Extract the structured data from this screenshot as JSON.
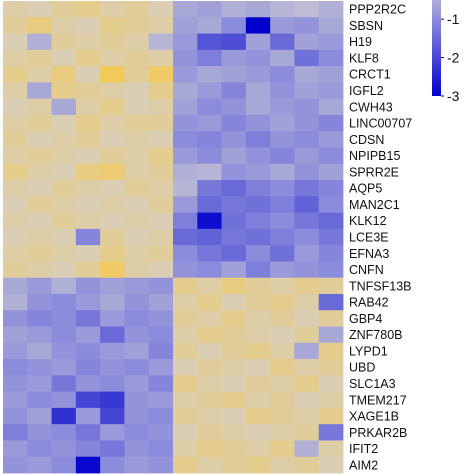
{
  "chart_data": {
    "type": "heatmap",
    "rows": [
      "PPP2R2C",
      "SBSN",
      "H19",
      "KLF8",
      "CRCT1",
      "IGFL2",
      "CWH43",
      "LINC00707",
      "CDSN",
      "NPIPB15",
      "SPRR2E",
      "AQP5",
      "MAN2C1",
      "KLK12",
      "LCE3E",
      "EFNA3",
      "CNFN",
      "TNFSF13B",
      "RAB42",
      "GBP4",
      "ZNF780B",
      "LYPD1",
      "UBD",
      "SLC1A3",
      "TMEM217",
      "XAGE1B",
      "PRKAR2B",
      "IFIT2",
      "AIM2"
    ],
    "n_cols": 14,
    "values": [
      [
        0.3,
        0.2,
        0.4,
        0.5,
        0.3,
        0.4,
        0.2,
        -0.6,
        -0.7,
        -0.5,
        -0.6,
        -0.4,
        -0.3,
        -0.5
      ],
      [
        0.4,
        0.6,
        0.3,
        0.2,
        0.5,
        0.4,
        0.3,
        -0.7,
        -0.6,
        -1.0,
        -3.0,
        -0.8,
        -0.9,
        -0.6
      ],
      [
        0.2,
        -0.5,
        0.4,
        0.3,
        0.4,
        0.3,
        -0.4,
        -0.8,
        -1.8,
        -1.9,
        -0.7,
        -1.5,
        -0.7,
        -0.8
      ],
      [
        0.3,
        0.4,
        0.2,
        0.5,
        0.3,
        0.4,
        0.3,
        -0.9,
        -1.2,
        -0.8,
        -0.9,
        -0.6,
        -1.4,
        -1.0
      ],
      [
        0.5,
        0.3,
        0.6,
        0.2,
        0.9,
        0.4,
        0.8,
        -0.8,
        -0.6,
        -0.7,
        -0.8,
        -1.0,
        -0.6,
        -0.7
      ],
      [
        0.3,
        -0.6,
        0.5,
        0.4,
        0.3,
        0.2,
        0.5,
        -0.6,
        -0.8,
        -1.1,
        -0.6,
        -0.9,
        -0.7,
        -0.8
      ],
      [
        0.2,
        0.3,
        -0.6,
        0.3,
        0.5,
        0.2,
        0.3,
        -0.7,
        -1.0,
        -0.9,
        -0.6,
        -0.8,
        -0.9,
        -0.6
      ],
      [
        0.3,
        0.4,
        0.2,
        0.5,
        0.3,
        0.4,
        0.4,
        -0.9,
        -0.8,
        -1.1,
        -0.9,
        -0.7,
        -0.9,
        -1.1
      ],
      [
        0.4,
        0.2,
        0.3,
        0.4,
        0.2,
        0.3,
        0.2,
        -1.0,
        -1.1,
        -0.9,
        -1.2,
        -0.9,
        -1.0,
        -0.8
      ],
      [
        0.3,
        0.4,
        0.3,
        0.2,
        0.4,
        0.3,
        0.5,
        -0.8,
        -1.0,
        -0.7,
        -0.9,
        -1.1,
        -0.8,
        -1.0
      ],
      [
        0.5,
        0.3,
        0.2,
        0.6,
        0.7,
        0.3,
        0.4,
        -0.5,
        -0.4,
        -0.9,
        -0.8,
        -0.6,
        -0.9,
        -0.7
      ],
      [
        0.3,
        0.2,
        0.4,
        0.3,
        0.2,
        0.4,
        0.3,
        -0.4,
        -1.3,
        -1.5,
        -1.2,
        -1.0,
        -1.3,
        -1.1
      ],
      [
        0.2,
        0.4,
        0.3,
        0.2,
        0.3,
        0.2,
        0.4,
        -0.8,
        -1.5,
        -1.3,
        -1.4,
        -1.2,
        -1.6,
        -1.0
      ],
      [
        0.3,
        0.2,
        0.4,
        0.3,
        0.2,
        0.3,
        0.2,
        -1.2,
        -2.8,
        -1.4,
        -1.2,
        -1.0,
        -1.3,
        -1.5
      ],
      [
        0.2,
        0.3,
        0.2,
        -1.1,
        0.4,
        0.2,
        0.3,
        -1.5,
        -1.6,
        -1.3,
        -1.4,
        -1.2,
        -1.0,
        -1.3
      ],
      [
        0.3,
        0.4,
        0.3,
        0.2,
        0.5,
        0.3,
        0.4,
        -1.0,
        -1.3,
        -1.5,
        -1.0,
        -1.4,
        -0.8,
        -1.1
      ],
      [
        0.4,
        0.3,
        0.2,
        0.4,
        0.8,
        0.3,
        0.2,
        -0.9,
        -1.0,
        -0.7,
        -1.2,
        -0.8,
        -0.9,
        -1.0
      ],
      [
        -0.6,
        -0.8,
        -0.5,
        -0.9,
        -0.7,
        -0.8,
        -0.9,
        0.5,
        0.3,
        0.6,
        0.4,
        0.3,
        0.5,
        0.4
      ],
      [
        -0.5,
        -0.9,
        -1.0,
        -0.8,
        -0.6,
        -0.9,
        -0.7,
        0.3,
        0.5,
        0.2,
        0.4,
        0.5,
        0.3,
        -1.5
      ],
      [
        -0.9,
        -1.1,
        -1.0,
        -1.3,
        -0.8,
        -1.0,
        -0.9,
        0.4,
        0.3,
        0.5,
        0.3,
        0.4,
        0.2,
        0.4
      ],
      [
        -0.7,
        -0.8,
        -1.0,
        -0.8,
        -1.5,
        -0.9,
        -1.0,
        0.3,
        0.5,
        0.4,
        0.3,
        0.2,
        0.4,
        -0.6
      ],
      [
        -0.8,
        -0.6,
        -0.9,
        -1.0,
        -0.8,
        -0.7,
        -1.1,
        0.4,
        0.2,
        0.4,
        0.5,
        0.3,
        -0.6,
        0.5
      ],
      [
        -1.0,
        -0.9,
        -0.8,
        -1.1,
        -0.9,
        -1.0,
        -0.8,
        0.2,
        0.4,
        0.3,
        0.2,
        0.5,
        0.3,
        0.4
      ],
      [
        -0.9,
        -0.8,
        -1.3,
        -0.9,
        -1.0,
        -0.8,
        -1.1,
        0.5,
        0.3,
        0.2,
        0.4,
        0.3,
        0.5,
        0.2
      ],
      [
        -0.8,
        -1.0,
        -0.9,
        -2.0,
        -2.2,
        -0.9,
        -0.8,
        0.3,
        0.4,
        0.5,
        0.3,
        0.4,
        0.2,
        0.3
      ],
      [
        -0.9,
        -0.7,
        -2.3,
        -0.8,
        -2.0,
        -0.9,
        -1.0,
        0.4,
        0.3,
        0.2,
        0.5,
        0.4,
        0.3,
        0.5
      ],
      [
        -1.2,
        -0.9,
        -1.0,
        -1.3,
        -0.8,
        -1.0,
        -0.9,
        0.2,
        0.4,
        0.3,
        0.2,
        0.3,
        0.4,
        -1.3
      ],
      [
        -0.8,
        -1.0,
        -0.9,
        -1.1,
        -1.3,
        -0.9,
        -1.0,
        0.3,
        0.5,
        0.4,
        0.3,
        0.5,
        -0.5,
        0.3
      ],
      [
        -0.9,
        -0.8,
        -1.0,
        -2.9,
        -1.0,
        -0.8,
        -0.9,
        0.5,
        0.3,
        0.4,
        0.5,
        0.3,
        0.4,
        0.2
      ]
    ],
    "color_scale": {
      "min": -3,
      "max": 1,
      "stops": [
        {
          "value": -3,
          "color": "#0000cd"
        },
        {
          "value": -1,
          "color": "#8c8cdc"
        },
        {
          "value": 0,
          "color": "#d3d1d0"
        },
        {
          "value": 1,
          "color": "#f7c84a"
        }
      ]
    },
    "legend": {
      "position": "top-right",
      "ticks": [
        {
          "value": -1,
          "label": "-1"
        },
        {
          "value": -2,
          "label": "-2"
        },
        {
          "value": -3,
          "label": "-3"
        }
      ]
    }
  }
}
